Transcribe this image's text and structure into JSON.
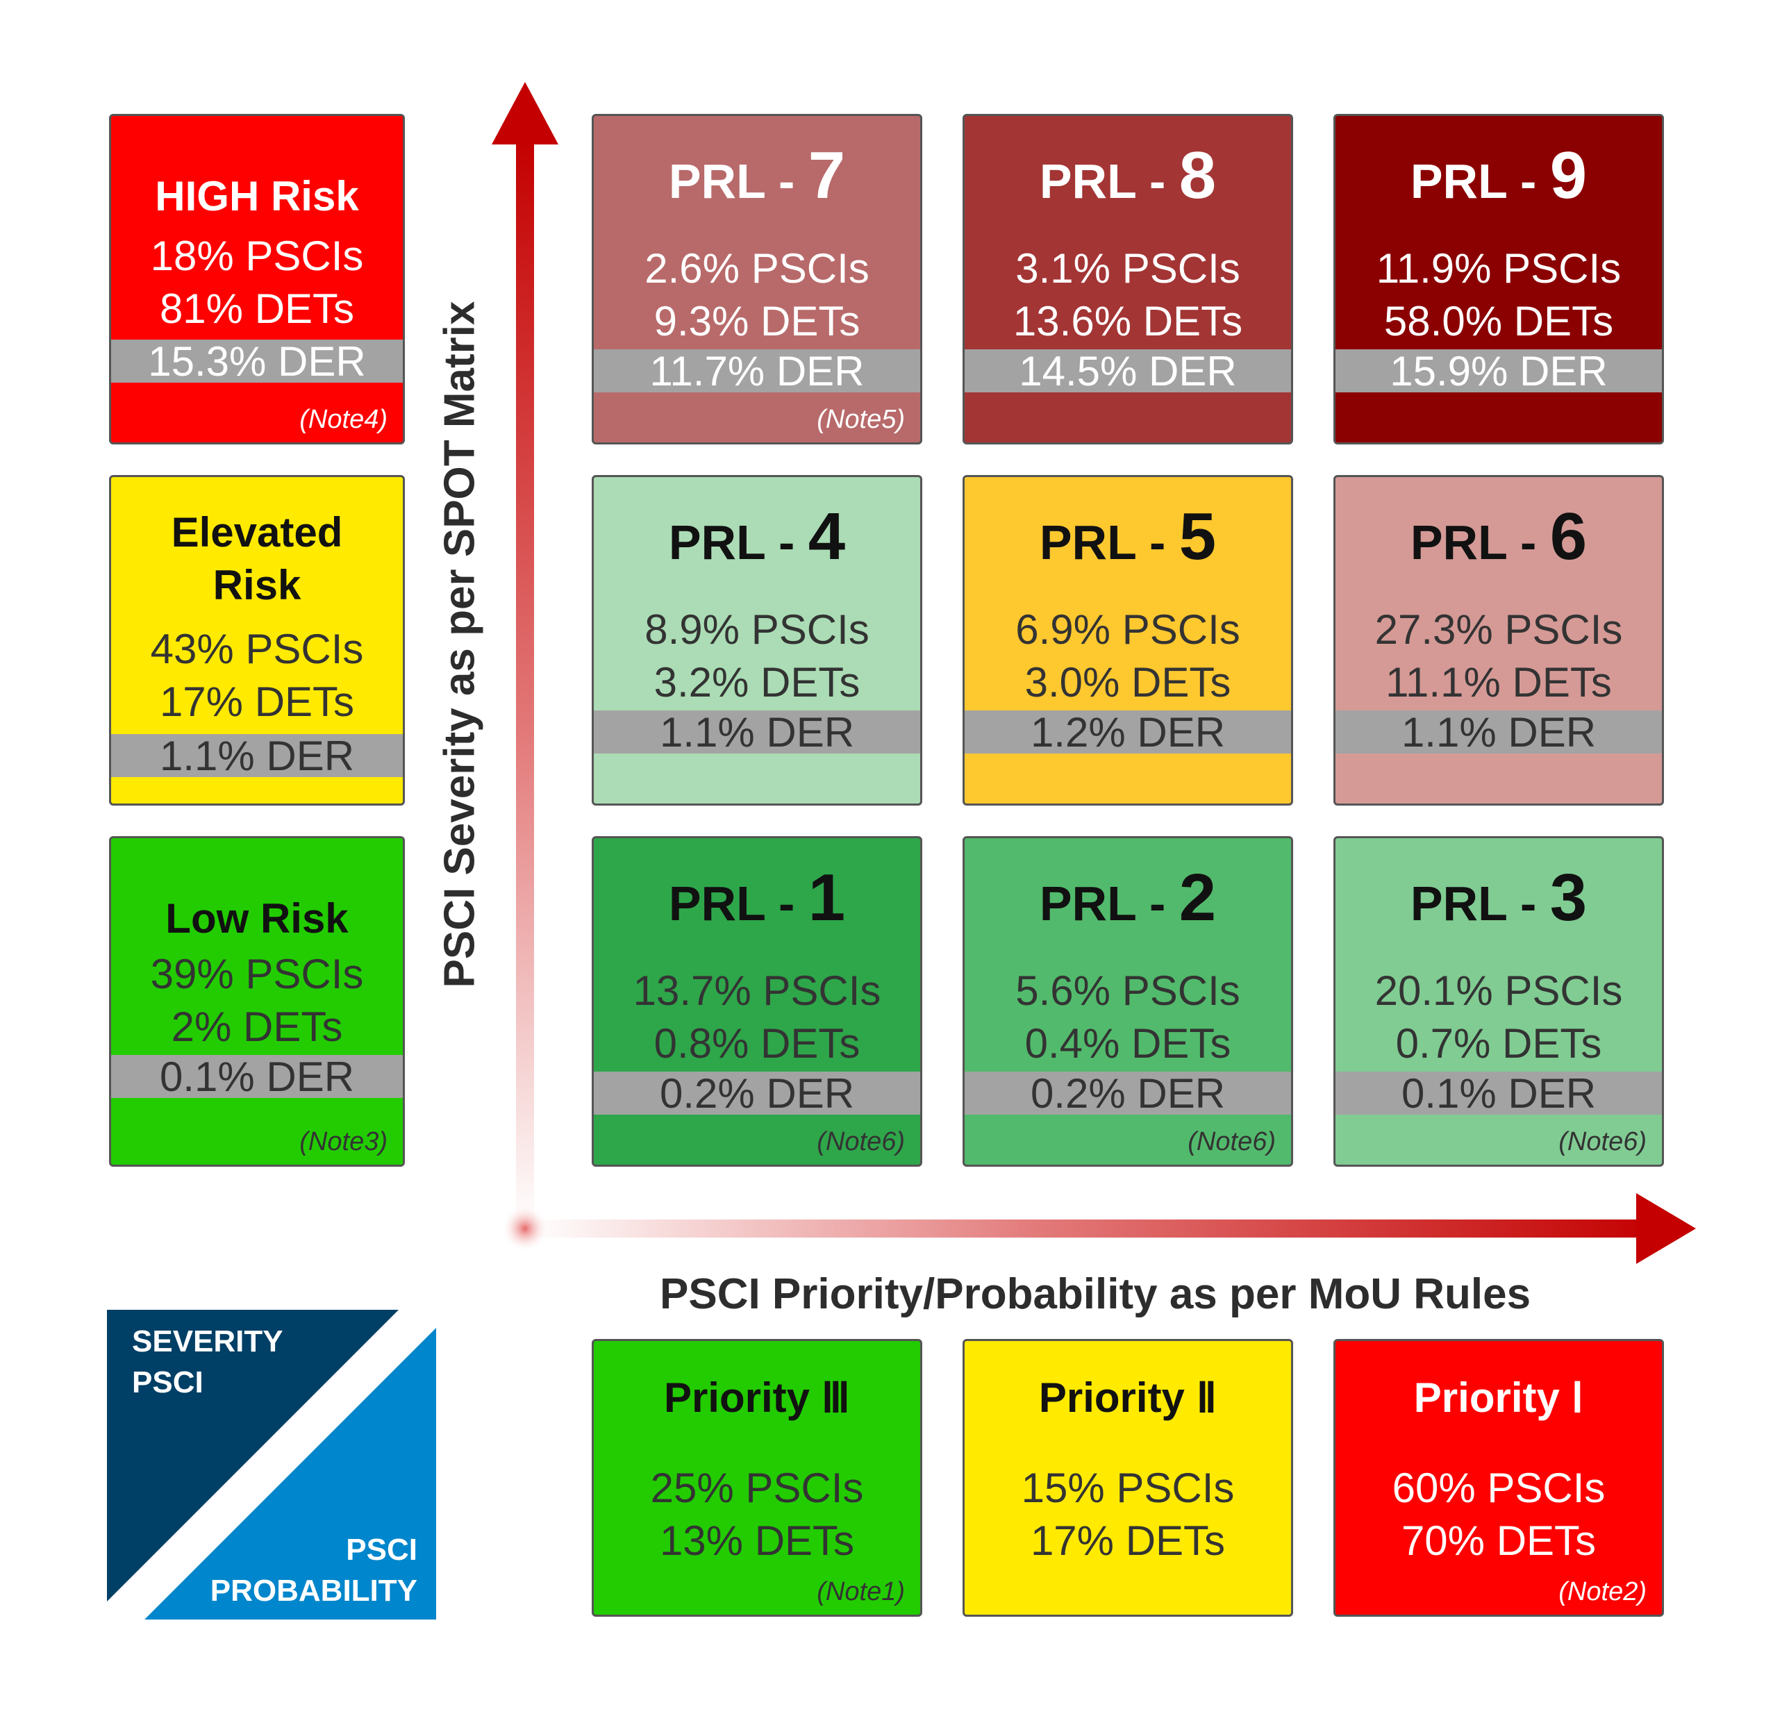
{
  "axes": {
    "y_label": "PSCI Severity as per SPOT Matrix",
    "x_label": "PSCI Priority/Probability as per MoU Rules"
  },
  "risk_boxes": [
    {
      "title_line1": "HIGH Risk",
      "title_line2": "",
      "pscis": "18% PSCIs",
      "dets": "81% DETs",
      "der": "15.3% DER",
      "note": "(Note4)",
      "color": "#ff0000"
    },
    {
      "title_line1": "Elevated",
      "title_line2": "Risk",
      "pscis": "43% PSCIs",
      "dets": "17% DETs",
      "der": "1.1% DER",
      "note": "",
      "color": "#ffea00"
    },
    {
      "title_line1": "Low Risk",
      "title_line2": "",
      "pscis": "39% PSCIs",
      "dets": "2% DETs",
      "der": "0.1% DER",
      "note": "(Note3)",
      "color": "#22cc00"
    }
  ],
  "prl_label": "PRL - ",
  "prl_cells": [
    {
      "num": "7",
      "pscis": "2.6% PSCIs",
      "dets": "9.3% DETs",
      "der": "11.7% DER",
      "note": "(Note5)",
      "color": "#b86a6a"
    },
    {
      "num": "8",
      "pscis": "3.1% PSCIs",
      "dets": "13.6% DETs",
      "der": "14.5% DER",
      "note": "",
      "color": "#a33535"
    },
    {
      "num": "9",
      "pscis": "11.9% PSCIs",
      "dets": "58.0% DETs",
      "der": "15.9% DER",
      "note": "",
      "color": "#8b0000"
    },
    {
      "num": "4",
      "pscis": "8.9% PSCIs",
      "dets": "3.2% DETs",
      "der": "1.1% DER",
      "note": "",
      "color": "#abdcb5"
    },
    {
      "num": "5",
      "pscis": "6.9% PSCIs",
      "dets": "3.0% DETs",
      "der": "1.2% DER",
      "note": "",
      "color": "#fec82f"
    },
    {
      "num": "6",
      "pscis": "27.3% PSCIs",
      "dets": "11.1% DETs",
      "der": "1.1% DER",
      "note": "",
      "color": "#d59a96"
    },
    {
      "num": "1",
      "pscis": "13.7% PSCIs",
      "dets": "0.8% DETs",
      "der": "0.2% DER",
      "note": "(Note6)",
      "color": "#2ea64a"
    },
    {
      "num": "2",
      "pscis": "5.6% PSCIs",
      "dets": "0.4% DETs",
      "der": "0.2% DER",
      "note": "(Note6)",
      "color": "#52ba6c"
    },
    {
      "num": "3",
      "pscis": "20.1% PSCIs",
      "dets": "0.7% DETs",
      "der": "0.1% DER",
      "note": "(Note6)",
      "color": "#80cc93"
    }
  ],
  "priority_boxes": [
    {
      "title": "Priority Ⅲ",
      "pscis": "25% PSCIs",
      "dets": "13% DETs",
      "note": "(Note1)",
      "color": "#22cc00"
    },
    {
      "title": "Priority Ⅱ",
      "pscis": "15% PSCIs",
      "dets": "17% DETs",
      "note": "",
      "color": "#ffea00"
    },
    {
      "title": "Priority Ⅰ",
      "pscis": "60% PSCIs",
      "dets": "70% DETs",
      "note": "(Note2)",
      "color": "#ff0000"
    }
  ],
  "legend": {
    "severity_line1": "SEVERITY",
    "severity_line2": "PSCI",
    "probability_line1": "PSCI",
    "probability_line2": "PROBABILITY",
    "severity_color": "#003f66",
    "probability_color": "#0086cc"
  }
}
